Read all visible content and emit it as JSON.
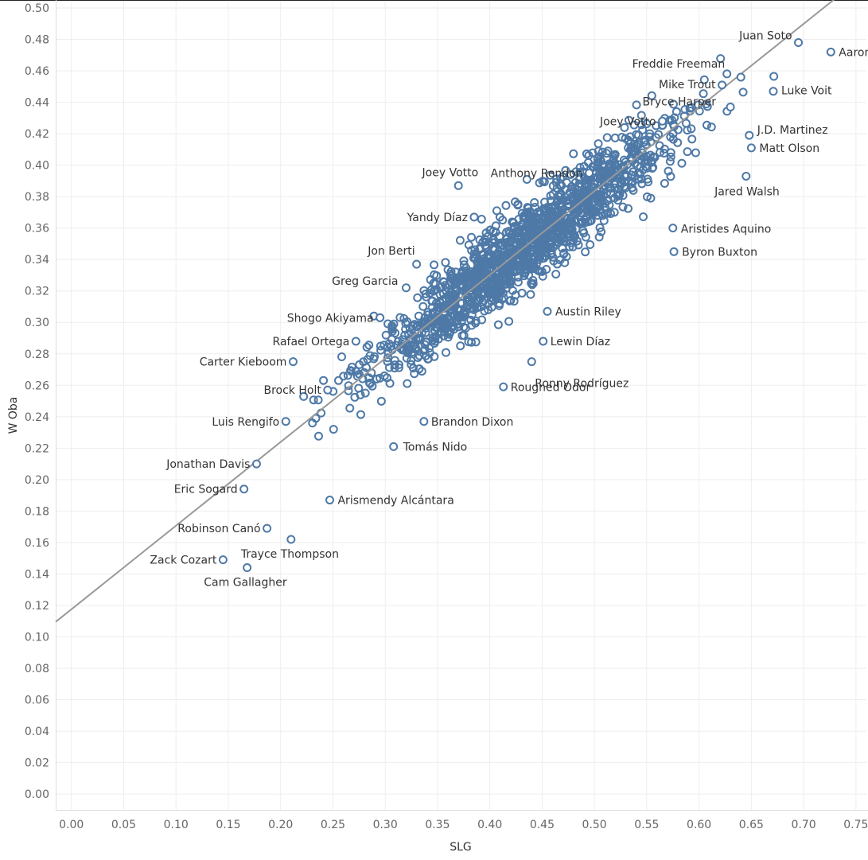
{
  "chart_data": {
    "type": "scatter",
    "xlabel": "SLG",
    "ylabel": "W Oba",
    "xlim": [
      -0.015,
      0.76
    ],
    "ylim": [
      -0.005,
      0.5
    ],
    "x_ticks": [
      "0.00",
      "0.05",
      "0.10",
      "0.15",
      "0.20",
      "0.25",
      "0.30",
      "0.35",
      "0.40",
      "0.45",
      "0.50",
      "0.55",
      "0.60",
      "0.65",
      "0.70",
      "0.75"
    ],
    "y_ticks": [
      "0.00",
      "0.02",
      "0.04",
      "0.06",
      "0.08",
      "0.10",
      "0.12",
      "0.14",
      "0.16",
      "0.18",
      "0.20",
      "0.22",
      "0.24",
      "0.26",
      "0.28",
      "0.30",
      "0.32",
      "0.34",
      "0.36",
      "0.38",
      "0.40",
      "0.42",
      "0.44",
      "0.46",
      "0.48",
      "0.50"
    ],
    "grid": true,
    "colors": {
      "point": "#4e79a7",
      "trend": "#999999"
    },
    "trend_line": {
      "intercept": 0.1175,
      "slope": 0.532
    },
    "labeled_points": [
      {
        "name": "Juan Soto",
        "x": 0.695,
        "y": 0.478
      },
      {
        "name": "Aaron Judge",
        "x": 0.726,
        "y": 0.472
      },
      {
        "name": "Freddie Freeman",
        "x": 0.64,
        "y": 0.456
      },
      {
        "name": "Mike Trout",
        "x": 0.622,
        "y": 0.451
      },
      {
        "name": "Luke Voit",
        "x": 0.671,
        "y": 0.447
      },
      {
        "name": "Bryce Harper",
        "x": 0.63,
        "y": 0.437
      },
      {
        "name": "Joey Votto",
        "x": 0.565,
        "y": 0.428
      },
      {
        "name": "J.D. Martinez",
        "x": 0.648,
        "y": 0.419
      },
      {
        "name": "Matt Olson",
        "x": 0.65,
        "y": 0.411
      },
      {
        "name": "Anthony Rendon",
        "x": 0.495,
        "y": 0.395
      },
      {
        "name": "Jared Walsh",
        "x": 0.645,
        "y": 0.393
      },
      {
        "name": "Joey Votto",
        "x": 0.37,
        "y": 0.387
      },
      {
        "name": "Yandy Díaz",
        "x": 0.385,
        "y": 0.367
      },
      {
        "name": "Aristides Aquino",
        "x": 0.575,
        "y": 0.36
      },
      {
        "name": "Jon Berti",
        "x": 0.33,
        "y": 0.337
      },
      {
        "name": "Byron Buxton",
        "x": 0.576,
        "y": 0.345
      },
      {
        "name": "Greg Garcia",
        "x": 0.32,
        "y": 0.322
      },
      {
        "name": "Austin Riley",
        "x": 0.455,
        "y": 0.307
      },
      {
        "name": "Shogo Akiyama",
        "x": 0.295,
        "y": 0.303
      },
      {
        "name": "Rafael Ortega",
        "x": 0.272,
        "y": 0.288
      },
      {
        "name": "Lewin Díaz",
        "x": 0.451,
        "y": 0.288
      },
      {
        "name": "Carter Kieboom",
        "x": 0.212,
        "y": 0.275
      },
      {
        "name": "Ronny Rodríguez",
        "x": 0.44,
        "y": 0.275
      },
      {
        "name": "Brock Holt",
        "x": 0.245,
        "y": 0.257
      },
      {
        "name": "Rougned Odor",
        "x": 0.413,
        "y": 0.259
      },
      {
        "name": "Brandon Dixon",
        "x": 0.337,
        "y": 0.237
      },
      {
        "name": "Luis Rengifo",
        "x": 0.205,
        "y": 0.237
      },
      {
        "name": "Tomás Nido",
        "x": 0.308,
        "y": 0.221
      },
      {
        "name": "Jonathan Davis",
        "x": 0.177,
        "y": 0.21
      },
      {
        "name": "Eric Sogard",
        "x": 0.165,
        "y": 0.194
      },
      {
        "name": "Arismendy Alcántara",
        "x": 0.247,
        "y": 0.187
      },
      {
        "name": "Robinson Canó",
        "x": 0.187,
        "y": 0.169
      },
      {
        "name": "Trayce Thompson",
        "x": 0.21,
        "y": 0.162
      },
      {
        "name": "Zack Cozart",
        "x": 0.145,
        "y": 0.149
      },
      {
        "name": "Cam Gallagher",
        "x": 0.168,
        "y": 0.144
      }
    ]
  }
}
